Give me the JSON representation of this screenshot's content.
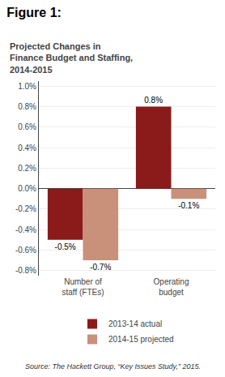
{
  "chart_data": {
    "type": "bar",
    "title": "Figure 1:",
    "subtitle": "Projected Changes in\nFinance Budget and Staffing,\n2014-2015",
    "source": "Source: The Hackett Group, “Key Issues Study,” 2015.",
    "categories": [
      "Number of\nstaff (FTEs)",
      "Operating\nbudget"
    ],
    "series": [
      {
        "name": "2013-14 actual",
        "color": "#8B1A1A",
        "values": [
          -0.5,
          0.8
        ],
        "value_labels": [
          "-0.5%",
          "0.8%"
        ]
      },
      {
        "name": "2014-15 projected",
        "color": "#C9907A",
        "values": [
          -0.7,
          -0.1
        ],
        "value_labels": [
          "-0.7%",
          "-0.1%"
        ]
      }
    ],
    "ylim": [
      -0.85,
      1.05
    ],
    "yticks": [
      {
        "value": -0.8,
        "label": "-0.8%"
      },
      {
        "value": -0.6,
        "label": "-0.6%"
      },
      {
        "value": -0.4,
        "label": "-0.4%"
      },
      {
        "value": -0.2,
        "label": "-0.2%"
      },
      {
        "value": 0.0,
        "label": "0.0%"
      },
      {
        "value": 0.2,
        "label": "0.2%"
      },
      {
        "value": 0.4,
        "label": "0.4%"
      },
      {
        "value": 0.6,
        "label": "0.6%"
      },
      {
        "value": 0.8,
        "label": "0.8%"
      },
      {
        "value": 1.0,
        "label": "1.0%"
      }
    ],
    "grid": true,
    "data_labels": true,
    "legend": "bottom"
  }
}
